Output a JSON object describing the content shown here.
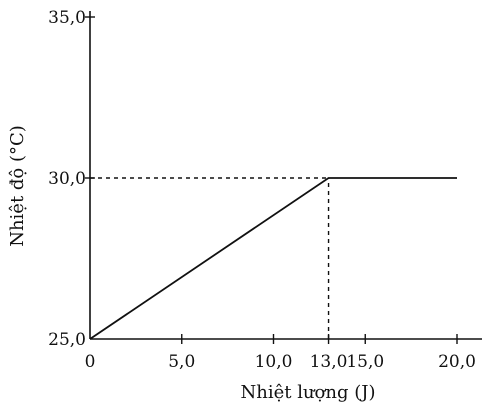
{
  "chart_data": {
    "type": "line",
    "title": "",
    "xlabel": "Nhiệt lượng (J)",
    "ylabel": "Nhiệt độ (°C)",
    "xlim": [
      0,
      20
    ],
    "ylim": [
      25,
      35
    ],
    "x_ticks": [
      {
        "value": 0,
        "label": "0"
      },
      {
        "value": 5,
        "label": "5,0"
      },
      {
        "value": 10,
        "label": "10,0"
      },
      {
        "value": 13,
        "label": "13,0"
      },
      {
        "value": 15,
        "label": "15,0"
      },
      {
        "value": 20,
        "label": "20,0"
      }
    ],
    "y_ticks": [
      {
        "value": 25,
        "label": "25,0"
      },
      {
        "value": 30,
        "label": "30,0"
      },
      {
        "value": 35,
        "label": "35,0"
      }
    ],
    "series": [
      {
        "x": [
          0,
          13,
          20
        ],
        "y": [
          25,
          30,
          30
        ],
        "color": "#111111"
      }
    ],
    "reference_lines": [
      {
        "orientation": "horizontal",
        "value": 30,
        "from": 0,
        "to": 13,
        "style": "dashed"
      },
      {
        "orientation": "vertical",
        "value": 13,
        "from": 25,
        "to": 30,
        "style": "dashed"
      }
    ],
    "grid": false,
    "legend": "none"
  }
}
